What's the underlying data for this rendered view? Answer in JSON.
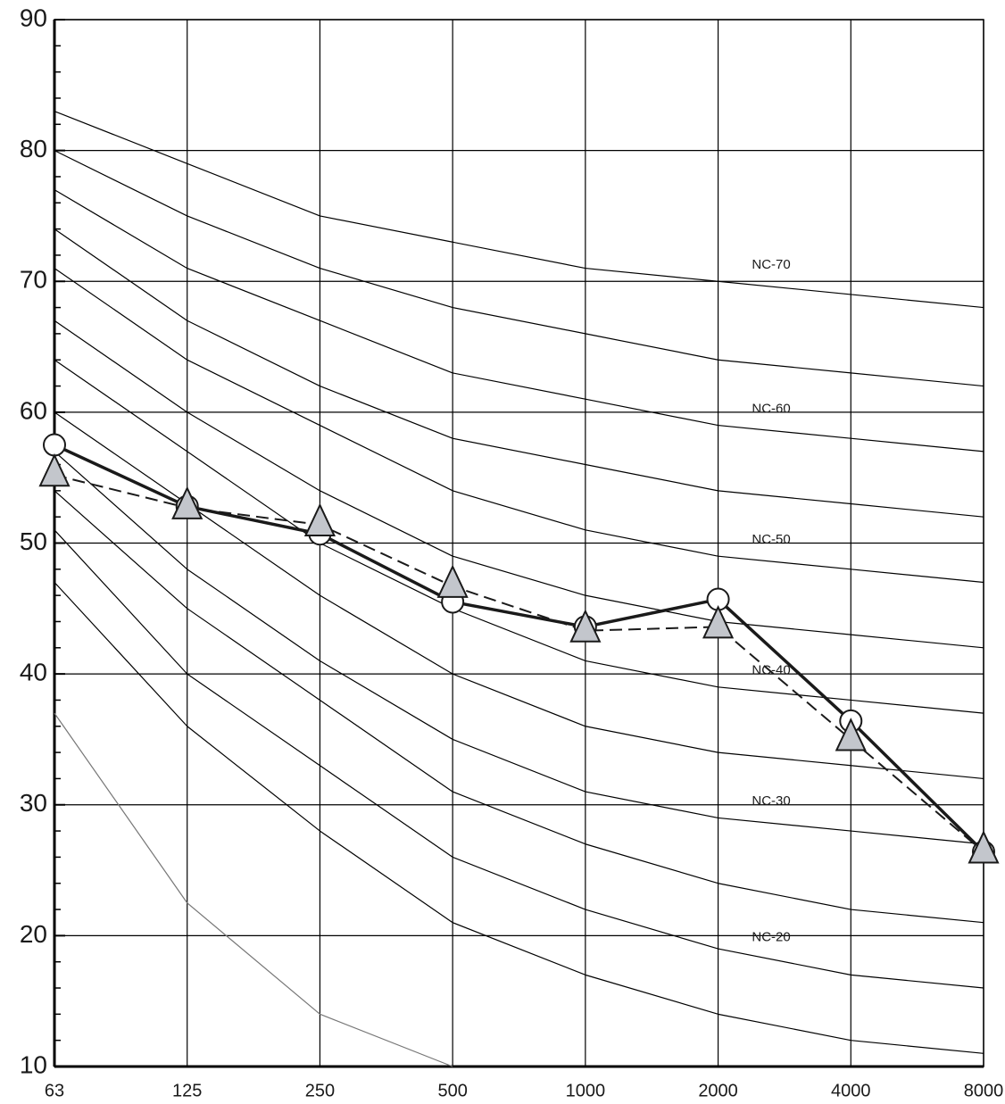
{
  "chart_data": {
    "type": "line",
    "categories": [
      "63",
      "125",
      "250",
      "500",
      "1000",
      "2000",
      "4000",
      "8000"
    ],
    "ylim": [
      10,
      90
    ],
    "yticks": [
      10,
      20,
      30,
      40,
      50,
      60,
      70,
      80,
      90
    ],
    "yminorticks": [
      12,
      14,
      16,
      18,
      22,
      24,
      26,
      28,
      32,
      34,
      36,
      38,
      42,
      44,
      46,
      48,
      52,
      54,
      56,
      58,
      62,
      64,
      66,
      68,
      72,
      74,
      76,
      78,
      82,
      84,
      86,
      88
    ],
    "grid": true,
    "series": [
      {
        "name": "NC-70",
        "color": "#000000",
        "values": [
          83,
          79,
          75,
          73,
          71,
          70,
          69,
          68
        ]
      },
      {
        "color": "#000000",
        "values": [
          80,
          75,
          71,
          68,
          66,
          64,
          63,
          62
        ]
      },
      {
        "name": "NC-60",
        "color": "#000000",
        "values": [
          77,
          71,
          67,
          63,
          61,
          59,
          58,
          57
        ]
      },
      {
        "color": "#000000",
        "values": [
          74,
          67,
          62,
          58,
          56,
          54,
          53,
          52
        ]
      },
      {
        "name": "NC-50",
        "color": "#000000",
        "values": [
          71,
          64,
          59,
          54,
          51,
          49,
          48,
          47
        ]
      },
      {
        "color": "#000000",
        "values": [
          67,
          60,
          54,
          49,
          46,
          44,
          43,
          42
        ]
      },
      {
        "name": "NC-40",
        "color": "#000000",
        "values": [
          64,
          57,
          50,
          45,
          41,
          39,
          38,
          37
        ]
      },
      {
        "color": "#000000",
        "values": [
          60,
          53,
          46,
          40,
          36,
          34,
          33,
          32
        ]
      },
      {
        "name": "NC-30",
        "color": "#000000",
        "values": [
          57,
          48,
          41,
          35,
          31,
          29,
          28,
          27
        ]
      },
      {
        "color": "#000000",
        "values": [
          54,
          45,
          38,
          31,
          27,
          24,
          22,
          21
        ]
      },
      {
        "name": "NC-20",
        "color": "#000000",
        "values": [
          51,
          40,
          33,
          26,
          22,
          19,
          17,
          16
        ]
      },
      {
        "color": "#000000",
        "values": [
          47,
          36,
          28,
          21,
          17,
          14,
          12,
          11
        ]
      },
      {
        "color": "#777777",
        "values": [
          37,
          22.5,
          14,
          10,
          null,
          null,
          null,
          null
        ]
      },
      {
        "color": "#1a1a1a",
        "marker": "circle",
        "width": 3.5,
        "values": [
          57.5,
          52.8,
          50.7,
          45.5,
          43.6,
          45.7,
          36.4,
          26.4
        ]
      },
      {
        "color": "#1a1a1a",
        "marker": "triangle",
        "dashed": true,
        "width": 2,
        "marker_color": "#c3c6cc",
        "values": [
          55.2,
          52.7,
          51.4,
          46.7,
          43.3,
          43.6,
          35.0,
          26.4
        ]
      }
    ]
  }
}
